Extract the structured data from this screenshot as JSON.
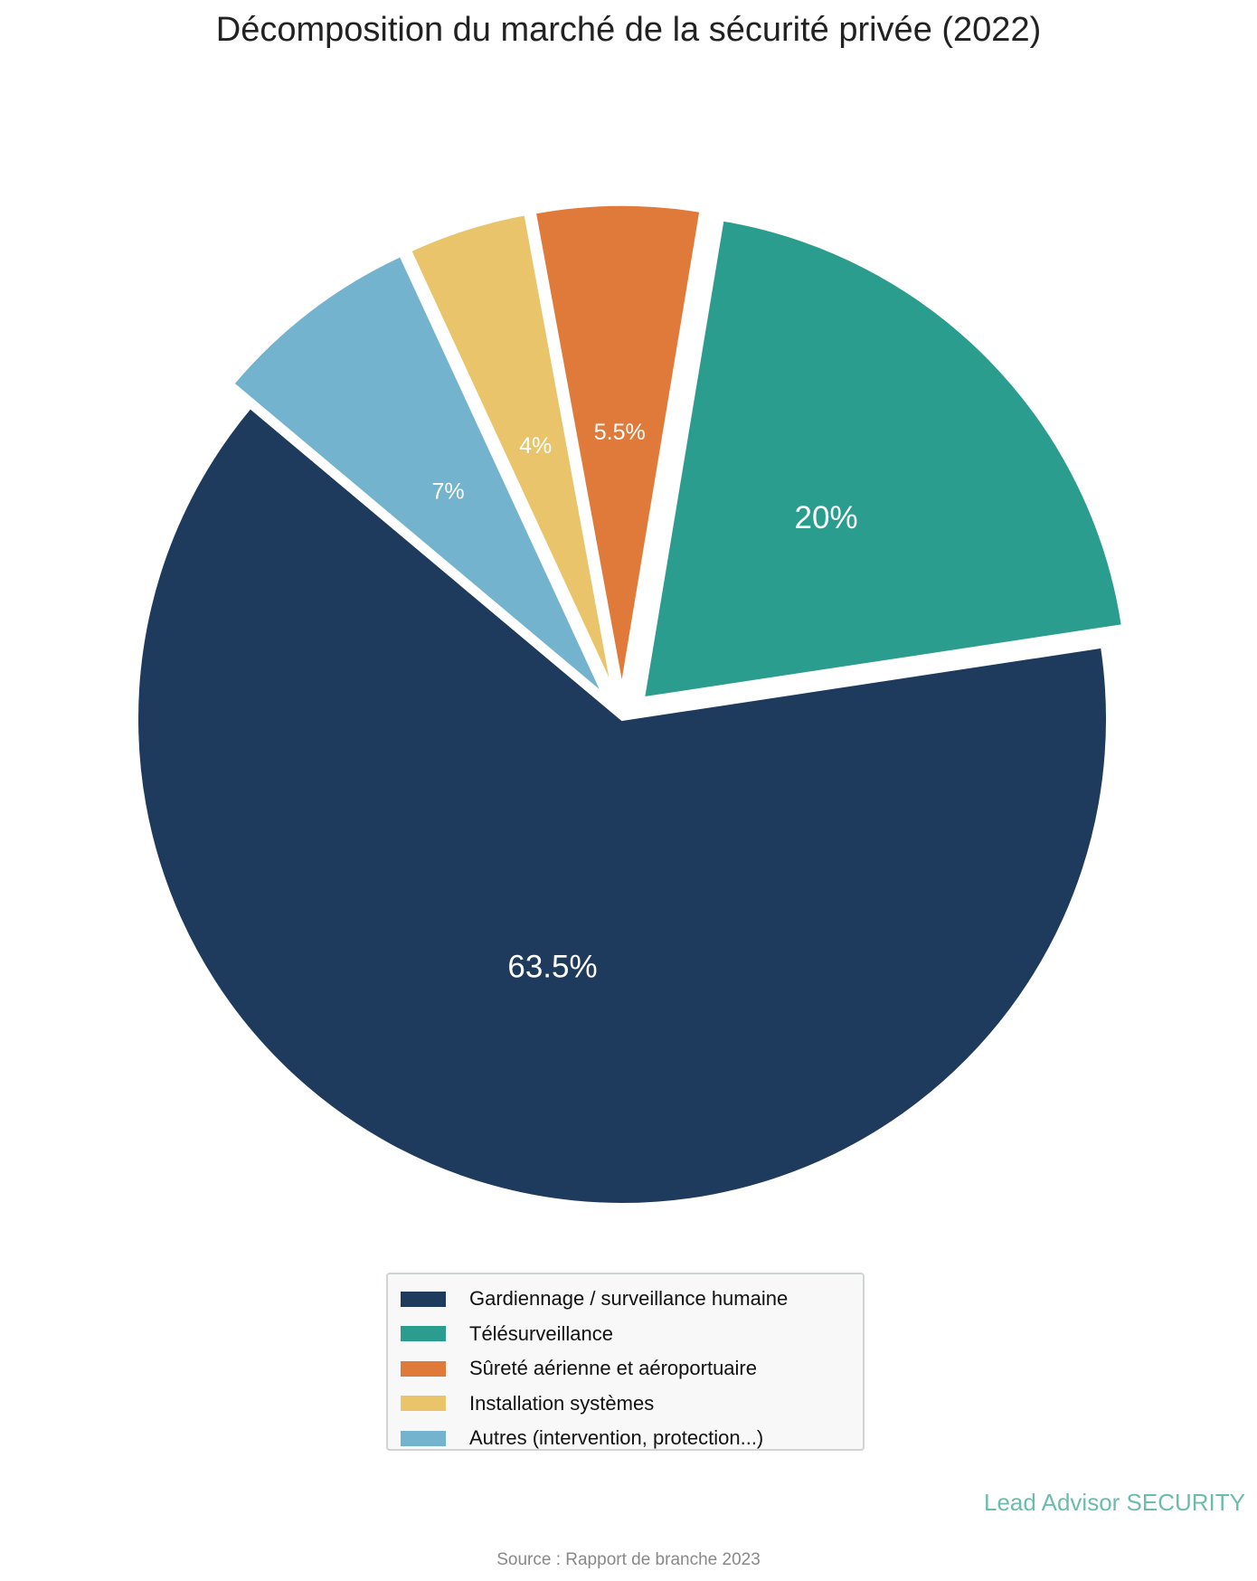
{
  "chart_data": {
    "type": "pie",
    "title": "Décomposition du marché de la sécurité privée (2022)",
    "categories": [
      "Gardiennage / surveillance humaine",
      "Télésurveillance",
      "Sûreté aérienne et aéroportuaire",
      "Installation systèmes",
      "Autres (intervention, protection...)"
    ],
    "values": [
      63.5,
      20,
      5.5,
      4,
      7
    ],
    "labels": [
      "63.5%",
      "20%",
      "5.5%",
      "4%",
      "7%"
    ],
    "colors": [
      "#1e3a5c",
      "#2b9d8e",
      "#e07a3a",
      "#e9c46a",
      "#74b3ce"
    ],
    "explode": [
      0,
      0.06,
      0.06,
      0.06,
      0.06
    ],
    "start_angle": 140,
    "direction": "counterclockwise",
    "legend_position": "bottom"
  },
  "footer": {
    "brand": "Lead Advisor SECURITY",
    "source": "Source : Rapport de branche 2023"
  }
}
